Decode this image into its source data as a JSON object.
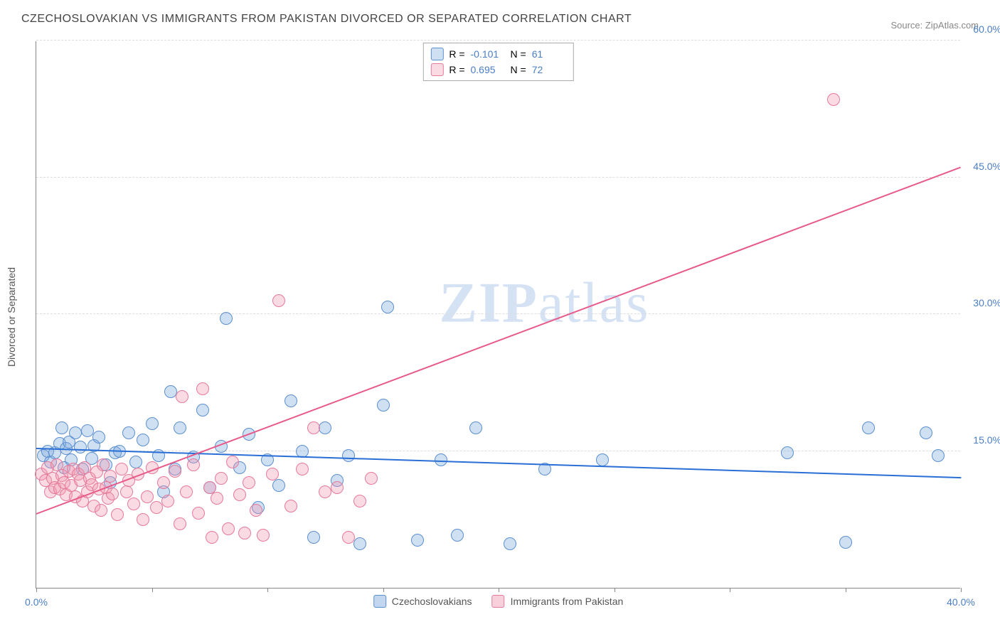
{
  "title": "CZECHOSLOVAKIAN VS IMMIGRANTS FROM PAKISTAN DIVORCED OR SEPARATED CORRELATION CHART",
  "source": "Source: ZipAtlas.com",
  "y_axis_label": "Divorced or Separated",
  "watermark_a": "ZIP",
  "watermark_b": "atlas",
  "chart": {
    "type": "scatter",
    "xlim": [
      0,
      40
    ],
    "ylim": [
      0,
      60
    ],
    "x_ticks": [
      0,
      40
    ],
    "y_ticks": [
      15,
      30,
      45,
      60
    ],
    "grid_color": "#dddddd",
    "background_color": "#ffffff",
    "marker_radius": 9,
    "series": [
      {
        "name": "Czechoslovakians",
        "fill": "rgba(120,165,220,0.35)",
        "stroke": "#5b8fd0",
        "trend_color": "#2a6fd6",
        "R": "-0.101",
        "N": "61",
        "trend": {
          "x1": 0,
          "y1": 15.2,
          "x2": 40,
          "y2": 12.0
        },
        "points": [
          [
            0.3,
            14.5
          ],
          [
            0.5,
            15.0
          ],
          [
            0.6,
            13.8
          ],
          [
            0.8,
            14.8
          ],
          [
            1.0,
            15.8
          ],
          [
            1.1,
            17.5
          ],
          [
            1.2,
            13.2
          ],
          [
            1.3,
            15.3
          ],
          [
            1.4,
            16.0
          ],
          [
            1.5,
            14.0
          ],
          [
            1.7,
            17.0
          ],
          [
            1.9,
            15.4
          ],
          [
            2.0,
            13.0
          ],
          [
            2.2,
            17.2
          ],
          [
            2.4,
            14.2
          ],
          [
            2.5,
            15.6
          ],
          [
            2.7,
            16.5
          ],
          [
            3.0,
            13.5
          ],
          [
            3.2,
            11.5
          ],
          [
            3.4,
            14.8
          ],
          [
            3.6,
            15.0
          ],
          [
            4.0,
            17.0
          ],
          [
            4.3,
            13.8
          ],
          [
            4.6,
            16.2
          ],
          [
            5.0,
            18.0
          ],
          [
            5.3,
            14.5
          ],
          [
            5.5,
            10.5
          ],
          [
            5.8,
            21.5
          ],
          [
            6.0,
            13.0
          ],
          [
            6.2,
            17.5
          ],
          [
            6.8,
            14.3
          ],
          [
            7.2,
            19.5
          ],
          [
            7.5,
            11.0
          ],
          [
            8.0,
            15.5
          ],
          [
            8.2,
            29.5
          ],
          [
            8.8,
            13.2
          ],
          [
            9.2,
            16.8
          ],
          [
            9.6,
            8.8
          ],
          [
            10.0,
            14.0
          ],
          [
            10.5,
            11.2
          ],
          [
            11.0,
            20.5
          ],
          [
            11.5,
            15.0
          ],
          [
            12.0,
            5.5
          ],
          [
            12.5,
            17.5
          ],
          [
            13.0,
            11.8
          ],
          [
            13.5,
            14.5
          ],
          [
            14.0,
            4.8
          ],
          [
            15.0,
            20.0
          ],
          [
            15.2,
            30.8
          ],
          [
            16.5,
            5.2
          ],
          [
            17.5,
            14.0
          ],
          [
            18.2,
            5.8
          ],
          [
            19.0,
            17.5
          ],
          [
            20.5,
            4.8
          ],
          [
            22.0,
            13.0
          ],
          [
            24.5,
            14.0
          ],
          [
            32.5,
            14.8
          ],
          [
            35.0,
            5.0
          ],
          [
            36.0,
            17.5
          ],
          [
            38.5,
            17.0
          ],
          [
            39.0,
            14.5
          ]
        ]
      },
      {
        "name": "Immigrants from Pakistan",
        "fill": "rgba(240,150,175,0.35)",
        "stroke": "#e57a9a",
        "trend_color": "#e85a8a",
        "R": "0.695",
        "N": "72",
        "trend": {
          "x1": 0,
          "y1": 8.0,
          "x2": 40,
          "y2": 46.0
        },
        "points": [
          [
            0.2,
            12.5
          ],
          [
            0.4,
            11.8
          ],
          [
            0.5,
            13.2
          ],
          [
            0.6,
            10.5
          ],
          [
            0.7,
            12.0
          ],
          [
            0.8,
            11.0
          ],
          [
            0.9,
            13.5
          ],
          [
            1.0,
            10.8
          ],
          [
            1.1,
            12.3
          ],
          [
            1.2,
            11.5
          ],
          [
            1.3,
            10.2
          ],
          [
            1.4,
            12.8
          ],
          [
            1.5,
            11.2
          ],
          [
            1.6,
            13.0
          ],
          [
            1.7,
            10.0
          ],
          [
            1.8,
            12.5
          ],
          [
            1.9,
            11.8
          ],
          [
            2.0,
            9.5
          ],
          [
            2.1,
            13.2
          ],
          [
            2.2,
            10.5
          ],
          [
            2.3,
            12.0
          ],
          [
            2.4,
            11.3
          ],
          [
            2.5,
            9.0
          ],
          [
            2.6,
            12.7
          ],
          [
            2.7,
            10.8
          ],
          [
            2.8,
            8.5
          ],
          [
            2.9,
            13.5
          ],
          [
            3.0,
            11.0
          ],
          [
            3.1,
            9.8
          ],
          [
            3.2,
            12.2
          ],
          [
            3.3,
            10.3
          ],
          [
            3.5,
            8.0
          ],
          [
            3.7,
            13.0
          ],
          [
            3.9,
            10.5
          ],
          [
            4.0,
            11.8
          ],
          [
            4.2,
            9.2
          ],
          [
            4.4,
            12.5
          ],
          [
            4.6,
            7.5
          ],
          [
            4.8,
            10.0
          ],
          [
            5.0,
            13.2
          ],
          [
            5.2,
            8.8
          ],
          [
            5.5,
            11.5
          ],
          [
            5.7,
            9.5
          ],
          [
            6.0,
            12.8
          ],
          [
            6.2,
            7.0
          ],
          [
            6.3,
            21.0
          ],
          [
            6.5,
            10.5
          ],
          [
            6.8,
            13.5
          ],
          [
            7.0,
            8.2
          ],
          [
            7.2,
            21.8
          ],
          [
            7.5,
            11.0
          ],
          [
            7.6,
            5.5
          ],
          [
            7.8,
            9.8
          ],
          [
            8.0,
            12.0
          ],
          [
            8.3,
            6.5
          ],
          [
            8.5,
            13.8
          ],
          [
            8.8,
            10.2
          ],
          [
            9.0,
            6.0
          ],
          [
            9.2,
            11.5
          ],
          [
            9.5,
            8.5
          ],
          [
            9.8,
            5.8
          ],
          [
            10.2,
            12.5
          ],
          [
            10.5,
            31.5
          ],
          [
            11.0,
            9.0
          ],
          [
            11.5,
            13.0
          ],
          [
            12.0,
            17.5
          ],
          [
            12.5,
            10.5
          ],
          [
            13.0,
            11.0
          ],
          [
            13.5,
            5.5
          ],
          [
            14.0,
            9.5
          ],
          [
            14.5,
            12.0
          ],
          [
            34.5,
            53.5
          ]
        ]
      }
    ]
  },
  "legend_bottom": [
    {
      "swatch_fill": "rgba(120,165,220,0.45)",
      "swatch_stroke": "#5b8fd0",
      "label": "Czechoslovakians"
    },
    {
      "swatch_fill": "rgba(240,150,175,0.45)",
      "swatch_stroke": "#e57a9a",
      "label": "Immigrants from Pakistan"
    }
  ]
}
